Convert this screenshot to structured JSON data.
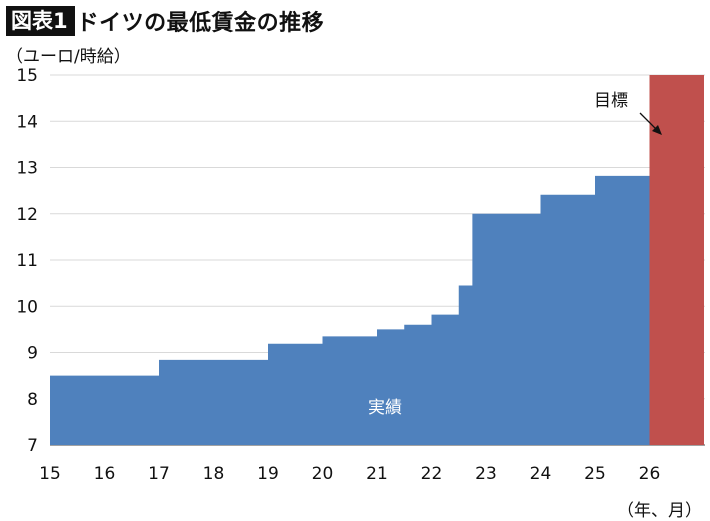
{
  "header": {
    "badge": "図表1",
    "title": "ドイツの最低賃金の推移"
  },
  "colors": {
    "actual": "#4f81bd",
    "target": "#c0504d"
  },
  "chart_data": {
    "type": "area",
    "title": "ドイツの最低賃金の推移",
    "ylabel": "（ユーロ/時給）",
    "xlabel": "（年、月）",
    "ylim": [
      7,
      15
    ],
    "xlim": [
      15,
      27
    ],
    "yticks": [
      7,
      8,
      9,
      10,
      11,
      12,
      13,
      14,
      15
    ],
    "xticks": [
      "15",
      "16",
      "17",
      "18",
      "19",
      "20",
      "21",
      "22",
      "23",
      "24",
      "25",
      "26"
    ],
    "xtick_values": [
      15,
      16,
      17,
      18,
      19,
      20,
      21,
      22,
      23,
      24,
      25,
      26
    ],
    "grid": "horizontal",
    "series": [
      {
        "name": "実績",
        "steps": [
          {
            "start": 15.0,
            "value": 8.5
          },
          {
            "start": 17.0,
            "value": 8.84
          },
          {
            "start": 19.0,
            "value": 9.19
          },
          {
            "start": 20.0,
            "value": 9.35
          },
          {
            "start": 21.0,
            "value": 9.5
          },
          {
            "start": 21.5,
            "value": 9.6
          },
          {
            "start": 22.0,
            "value": 9.82
          },
          {
            "start": 22.5,
            "value": 10.45
          },
          {
            "start": 22.75,
            "value": 12.0
          },
          {
            "start": 24.0,
            "value": 12.41
          },
          {
            "start": 25.0,
            "value": 12.82
          }
        ],
        "end": 26.0
      },
      {
        "name": "目標",
        "steps": [
          {
            "start": 26.0,
            "value": 15.0
          }
        ],
        "end": 27.0
      }
    ]
  }
}
